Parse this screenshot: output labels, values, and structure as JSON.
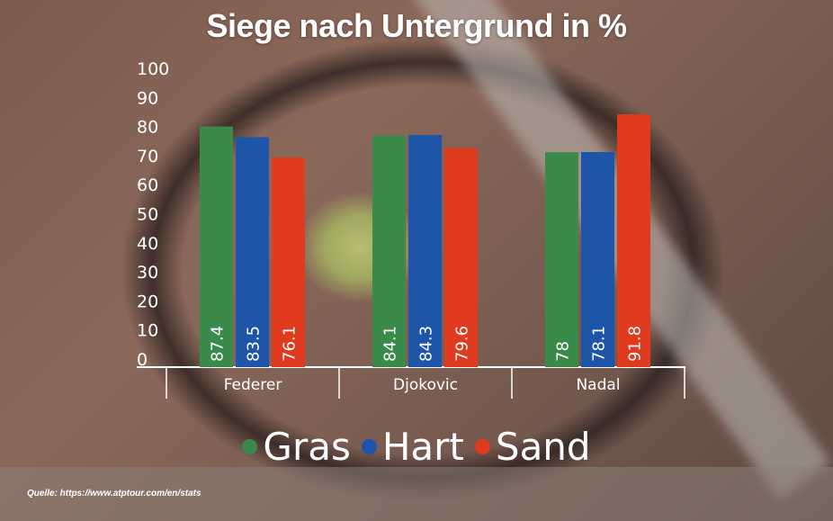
{
  "chart_data": {
    "type": "bar",
    "title": "Siege nach Untergrund in %",
    "categories": [
      "Federer",
      "Djokovic",
      "Nadal"
    ],
    "series": [
      {
        "name": "Gras",
        "values": [
          87.4,
          84.1,
          78
        ],
        "color": "#3a8a4a"
      },
      {
        "name": "Hart",
        "values": [
          83.5,
          84.3,
          78.1
        ],
        "color": "#1f55a8"
      },
      {
        "name": "Sand",
        "values": [
          76.1,
          79.6,
          91.8
        ],
        "color": "#e03a1f"
      }
    ],
    "ylim": [
      0,
      100
    ],
    "yticks": [
      "0",
      "10",
      "20",
      "30",
      "40",
      "50",
      "60",
      "70",
      "80",
      "90",
      "100"
    ],
    "grid": false,
    "legend_position": "bottom"
  },
  "source": "Quelle: https://www.atptour.com/en/stats"
}
